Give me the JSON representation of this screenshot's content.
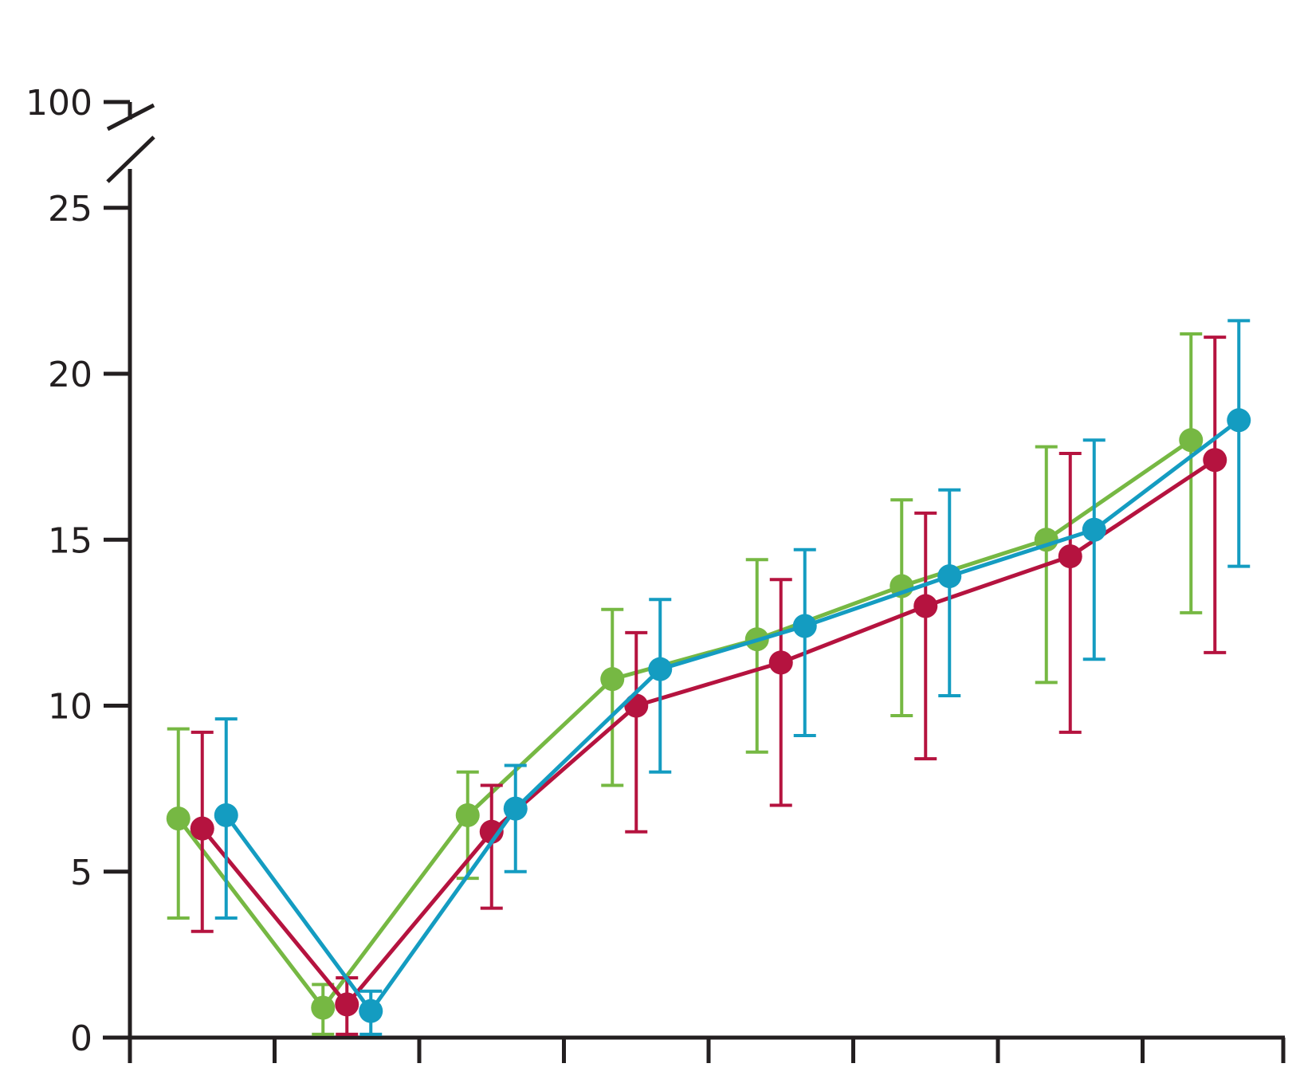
{
  "chart_data": {
    "type": "line",
    "title": "",
    "xlabel": "",
    "ylabel": "",
    "x_categories": 8,
    "ylim": [
      0,
      25
    ],
    "yticks": [
      "0",
      "5",
      "10",
      "15",
      "20",
      "25"
    ],
    "axis_break_label": "100",
    "grid": false,
    "legend": "none",
    "series": [
      {
        "color": "#76b843",
        "values": [
          6.6,
          0.9,
          6.7,
          10.8,
          12.0,
          13.6,
          15.0,
          18.0
        ],
        "err_low": [
          3.6,
          0.1,
          4.8,
          7.6,
          8.6,
          9.7,
          10.7,
          12.8
        ],
        "err_high": [
          9.3,
          1.6,
          8.0,
          12.9,
          14.4,
          16.2,
          17.8,
          21.2
        ]
      },
      {
        "color": "#b5133f",
        "values": [
          6.3,
          1.0,
          6.2,
          10.0,
          11.3,
          13.0,
          14.5,
          17.4
        ],
        "err_low": [
          3.2,
          0.1,
          3.9,
          6.2,
          7.0,
          8.4,
          9.2,
          11.6
        ],
        "err_high": [
          9.2,
          1.8,
          7.6,
          12.2,
          13.8,
          15.8,
          17.6,
          21.1
        ]
      },
      {
        "color": "#149cc1",
        "values": [
          6.7,
          0.8,
          6.9,
          11.1,
          12.4,
          13.9,
          15.3,
          18.6
        ],
        "err_low": [
          3.6,
          0.1,
          5.0,
          8.0,
          9.1,
          10.3,
          11.4,
          14.2
        ],
        "err_high": [
          9.6,
          1.4,
          8.2,
          13.2,
          14.7,
          16.5,
          18.0,
          21.6
        ]
      }
    ]
  }
}
